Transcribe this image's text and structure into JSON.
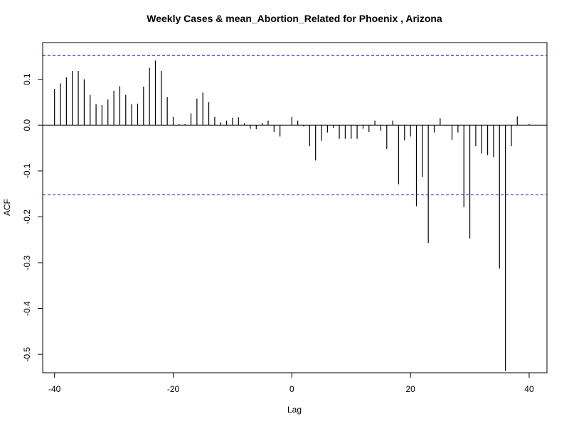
{
  "chart_data": {
    "type": "bar",
    "title": "Weekly Cases & mean_Abortion_Related for Phoenix , Arizona",
    "xlabel": "Lag",
    "ylabel": "ACF",
    "xlim": [
      -42,
      43
    ],
    "ylim": [
      -0.54,
      0.18
    ],
    "x_ticks": [
      -40,
      -20,
      0,
      20,
      40
    ],
    "y_ticks": [
      0.1,
      0.0,
      -0.1,
      -0.2,
      -0.3,
      -0.4,
      -0.5
    ],
    "x_tick_labels": [
      "-40",
      "-20",
      "0",
      "20",
      "40"
    ],
    "y_tick_labels": [
      "0.1",
      "0.0",
      "-0.1",
      "-0.2",
      "-0.3",
      "-0.4",
      "-0.5"
    ],
    "confidence_bounds": [
      0.152,
      -0.152
    ],
    "colors": {
      "bars": "#000000",
      "confidence": "#0000ff",
      "zero_line": "#000000"
    },
    "lags": [
      -40,
      -39,
      -38,
      -37,
      -36,
      -35,
      -34,
      -33,
      -32,
      -31,
      -30,
      -29,
      -28,
      -27,
      -26,
      -25,
      -24,
      -23,
      -22,
      -21,
      -20,
      -19,
      -18,
      -17,
      -16,
      -15,
      -14,
      -13,
      -12,
      -11,
      -10,
      -9,
      -8,
      -7,
      -6,
      -5,
      -4,
      -3,
      -2,
      -1,
      0,
      1,
      2,
      3,
      4,
      5,
      6,
      7,
      8,
      9,
      10,
      11,
      12,
      13,
      14,
      15,
      16,
      17,
      18,
      19,
      20,
      21,
      22,
      23,
      24,
      25,
      26,
      27,
      28,
      29,
      30,
      31,
      32,
      33,
      34,
      35,
      36,
      37,
      38,
      39,
      40
    ],
    "values": [
      0.079,
      0.091,
      0.104,
      0.118,
      0.118,
      0.1,
      0.066,
      0.046,
      0.044,
      0.056,
      0.075,
      0.085,
      0.066,
      0.046,
      0.047,
      0.084,
      0.125,
      0.141,
      0.118,
      0.061,
      0.018,
      0.002,
      0.002,
      0.026,
      0.058,
      0.071,
      0.05,
      0.018,
      0.006,
      0.01,
      0.016,
      0.017,
      0.004,
      -0.008,
      -0.009,
      0.005,
      0.01,
      -0.015,
      -0.025,
      0.0,
      0.018,
      0.01,
      -0.003,
      -0.046,
      -0.077,
      -0.034,
      -0.016,
      -0.006,
      -0.03,
      -0.03,
      -0.03,
      -0.03,
      -0.008,
      -0.015,
      0.01,
      -0.012,
      -0.052,
      0.01,
      -0.129,
      -0.033,
      -0.025,
      -0.177,
      -0.113,
      -0.257,
      -0.016,
      0.015,
      -0.001,
      -0.032,
      -0.016,
      -0.179,
      -0.247,
      -0.046,
      -0.062,
      -0.065,
      -0.07,
      -0.313,
      -0.536,
      -0.046,
      0.019,
      0.0,
      0.002
    ]
  }
}
